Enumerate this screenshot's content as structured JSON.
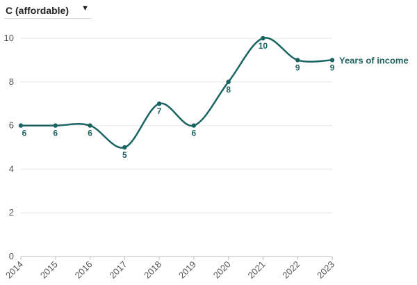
{
  "selector": {
    "selected": "C (affordable)",
    "caret_icon": "caret-down-icon"
  },
  "chart_data": {
    "type": "line",
    "categories": [
      "2014",
      "2015",
      "2016",
      "2017",
      "2018",
      "2019",
      "2020",
      "2021",
      "2022",
      "2023"
    ],
    "series": [
      {
        "name": "Years of income",
        "values": [
          6,
          6,
          6,
          5,
          7,
          6,
          8,
          10,
          9,
          9
        ],
        "color": "#1a6363"
      }
    ],
    "title": "",
    "xlabel": "",
    "ylabel": "",
    "ylim": [
      0,
      10
    ],
    "yticks": [
      0,
      2,
      4,
      6,
      8,
      10
    ],
    "grid": true,
    "curve": "smooth",
    "legend": "end-of-line"
  }
}
